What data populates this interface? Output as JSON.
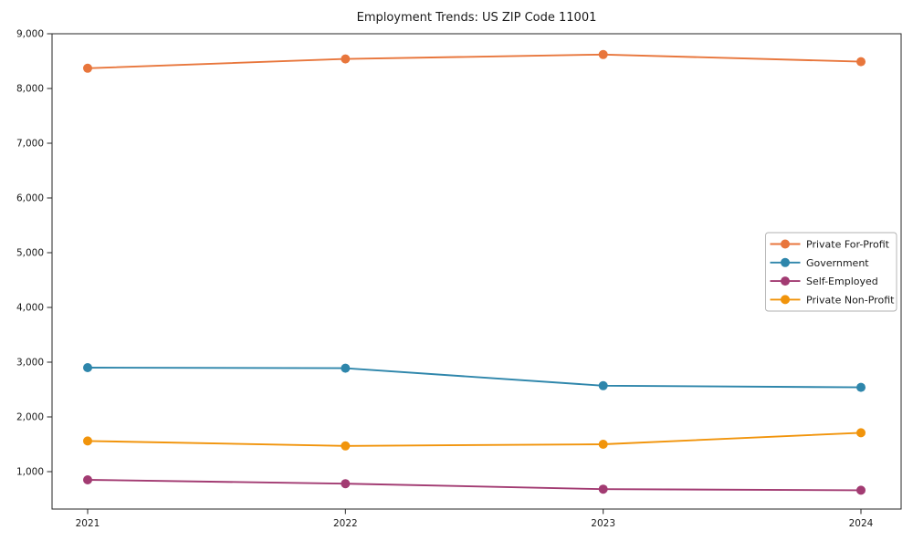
{
  "window": {
    "background": "#ffffff",
    "text_color": "#1a1a1a",
    "spine_color": "#262626",
    "legend_border_color": "#b0b0b0"
  },
  "chart_data": {
    "type": "line",
    "title": "Employment Trends: US ZIP Code 11001",
    "xlabel": "",
    "ylabel": "",
    "categories": [
      "2021",
      "2022",
      "2023",
      "2024"
    ],
    "series": [
      {
        "name": "Private For-Profit",
        "color": "#E8763C",
        "values": [
          8370,
          8540,
          8620,
          8490
        ]
      },
      {
        "name": "Government",
        "color": "#2E86AB",
        "values": [
          2900,
          2890,
          2570,
          2540
        ]
      },
      {
        "name": "Self-Employed",
        "color": "#A23B72",
        "values": [
          850,
          780,
          680,
          660
        ]
      },
      {
        "name": "Private Non-Profit",
        "color": "#F1940B",
        "values": [
          1560,
          1470,
          1500,
          1710
        ]
      }
    ],
    "yticks": [
      1000,
      2000,
      3000,
      4000,
      5000,
      6000,
      7000,
      8000,
      9000
    ],
    "ytick_labels": [
      "1,000",
      "2,000",
      "3,000",
      "4,000",
      "5,000",
      "6,000",
      "7,000",
      "8,000",
      "9,000"
    ],
    "ylim_top_value": 9000,
    "grid": false,
    "legend_position": "center right",
    "legend_order": [
      "Private For-Profit",
      "Government",
      "Self-Employed",
      "Private Non-Profit"
    ]
  }
}
